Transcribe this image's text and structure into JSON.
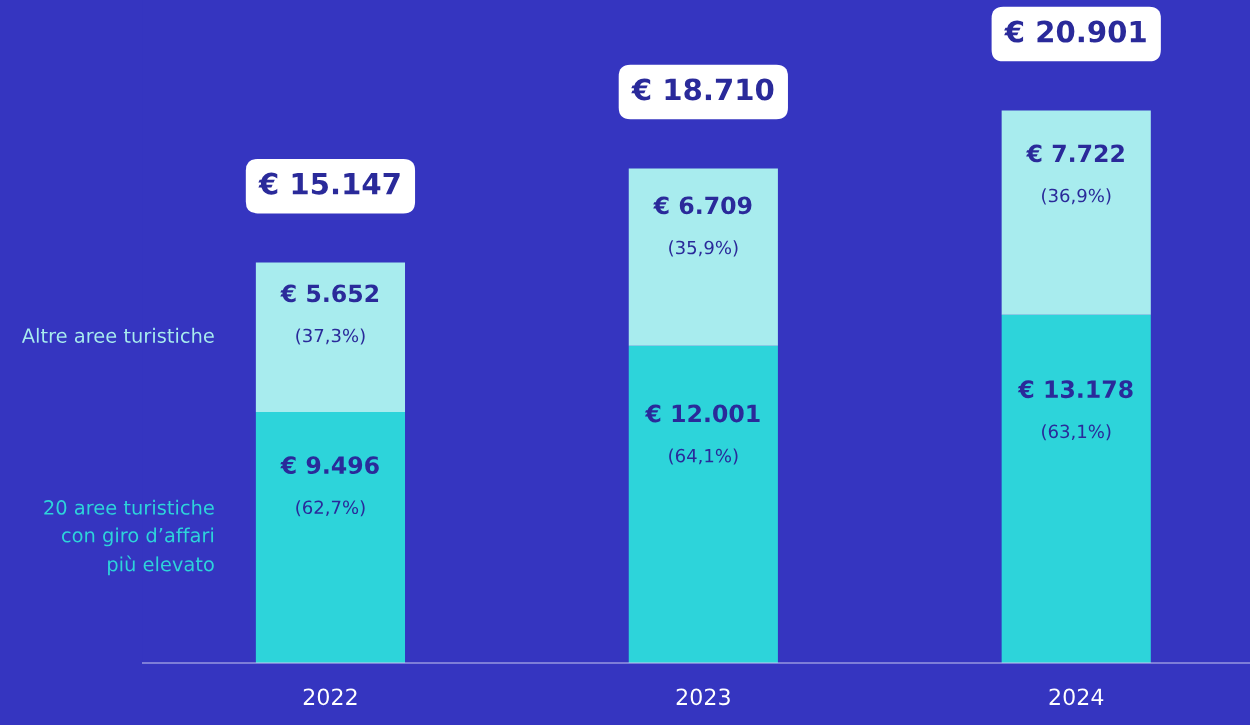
{
  "chart_data": {
    "type": "bar",
    "stacked": true,
    "legend": "left",
    "categories": [
      "2022",
      "2023",
      "2024"
    ],
    "series": [
      {
        "name": "20 aree turistiche con giro d’affari più elevato",
        "color": "#2dd4da",
        "values": [
          9496,
          12001,
          13178
        ],
        "value_labels": [
          "€ 9.496\n(62,7%)",
          "€ 12.001\n(64,1%)",
          "€ 13.178\n(63,1%)"
        ]
      },
      {
        "name": "Altre aree turistiche",
        "color": "#a8ecee",
        "values": [
          5652,
          6709,
          7722
        ],
        "value_labels": [
          "€ 5.652\n(37,3%)",
          "€ 6.709\n(35,9%)",
          "€ 7.722\n(36,9%)"
        ]
      }
    ],
    "totals": [
      "€ 15.147",
      "€ 18.710",
      "€ 20.901"
    ]
  }
}
